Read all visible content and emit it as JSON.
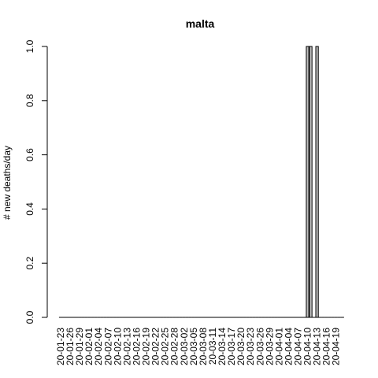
{
  "chart_data": {
    "type": "bar",
    "title": "malta",
    "xlabel": "",
    "ylabel": "# new deaths/day",
    "ylim": [
      0,
      1
    ],
    "yticks": [
      "0.0",
      "0.2",
      "0.4",
      "0.6",
      "0.8",
      "1.0"
    ],
    "grid": false,
    "bar_color": "#bebebe",
    "categories": [
      "20-01-23",
      "20-01-24",
      "20-01-25",
      "20-01-26",
      "20-01-27",
      "20-01-28",
      "20-01-29",
      "20-01-30",
      "20-01-31",
      "20-02-01",
      "20-02-02",
      "20-02-03",
      "20-02-04",
      "20-02-05",
      "20-02-06",
      "20-02-07",
      "20-02-08",
      "20-02-09",
      "20-02-10",
      "20-02-11",
      "20-02-12",
      "20-02-13",
      "20-02-14",
      "20-02-15",
      "20-02-16",
      "20-02-17",
      "20-02-18",
      "20-02-19",
      "20-02-20",
      "20-02-21",
      "20-02-22",
      "20-02-23",
      "20-02-24",
      "20-02-25",
      "20-02-26",
      "20-02-27",
      "20-02-28",
      "20-02-29",
      "20-03-01",
      "20-03-02",
      "20-03-03",
      "20-03-04",
      "20-03-05",
      "20-03-06",
      "20-03-07",
      "20-03-08",
      "20-03-09",
      "20-03-10",
      "20-03-11",
      "20-03-12",
      "20-03-13",
      "20-03-14",
      "20-03-15",
      "20-03-16",
      "20-03-17",
      "20-03-18",
      "20-03-19",
      "20-03-20",
      "20-03-21",
      "20-03-22",
      "20-03-23",
      "20-03-24",
      "20-03-25",
      "20-03-26",
      "20-03-27",
      "20-03-28",
      "20-03-29",
      "20-03-30",
      "20-03-31",
      "20-04-01",
      "20-04-02",
      "20-04-03",
      "20-04-04",
      "20-04-05",
      "20-04-06",
      "20-04-07",
      "20-04-08",
      "20-04-09",
      "20-04-10",
      "20-04-11",
      "20-04-12",
      "20-04-13",
      "20-04-14",
      "20-04-15",
      "20-04-16",
      "20-04-17",
      "20-04-18",
      "20-04-19",
      "20-04-20",
      "20-04-21"
    ],
    "values": [
      0,
      0,
      0,
      0,
      0,
      0,
      0,
      0,
      0,
      0,
      0,
      0,
      0,
      0,
      0,
      0,
      0,
      0,
      0,
      0,
      0,
      0,
      0,
      0,
      0,
      0,
      0,
      0,
      0,
      0,
      0,
      0,
      0,
      0,
      0,
      0,
      0,
      0,
      0,
      0,
      0,
      0,
      0,
      0,
      0,
      0,
      0,
      0,
      0,
      0,
      0,
      0,
      0,
      0,
      0,
      0,
      0,
      0,
      0,
      0,
      0,
      0,
      0,
      0,
      0,
      0,
      0,
      0,
      0,
      0,
      0,
      0,
      0,
      0,
      0,
      0,
      0,
      0,
      1,
      1,
      0,
      1,
      0,
      0,
      0,
      0,
      0,
      0,
      0,
      0
    ],
    "xtick_labels": [
      "20-01-23",
      "20-01-26",
      "20-01-29",
      "20-02-01",
      "20-02-04",
      "20-02-07",
      "20-02-10",
      "20-02-13",
      "20-02-16",
      "20-02-19",
      "20-02-22",
      "20-02-25",
      "20-02-28",
      "20-03-02",
      "20-03-05",
      "20-03-08",
      "20-03-11",
      "20-03-14",
      "20-03-17",
      "20-03-20",
      "20-03-23",
      "20-03-26",
      "20-03-29",
      "20-04-01",
      "20-04-04",
      "20-04-07",
      "20-04-10",
      "20-04-13",
      "20-04-16",
      "20-04-19"
    ]
  }
}
